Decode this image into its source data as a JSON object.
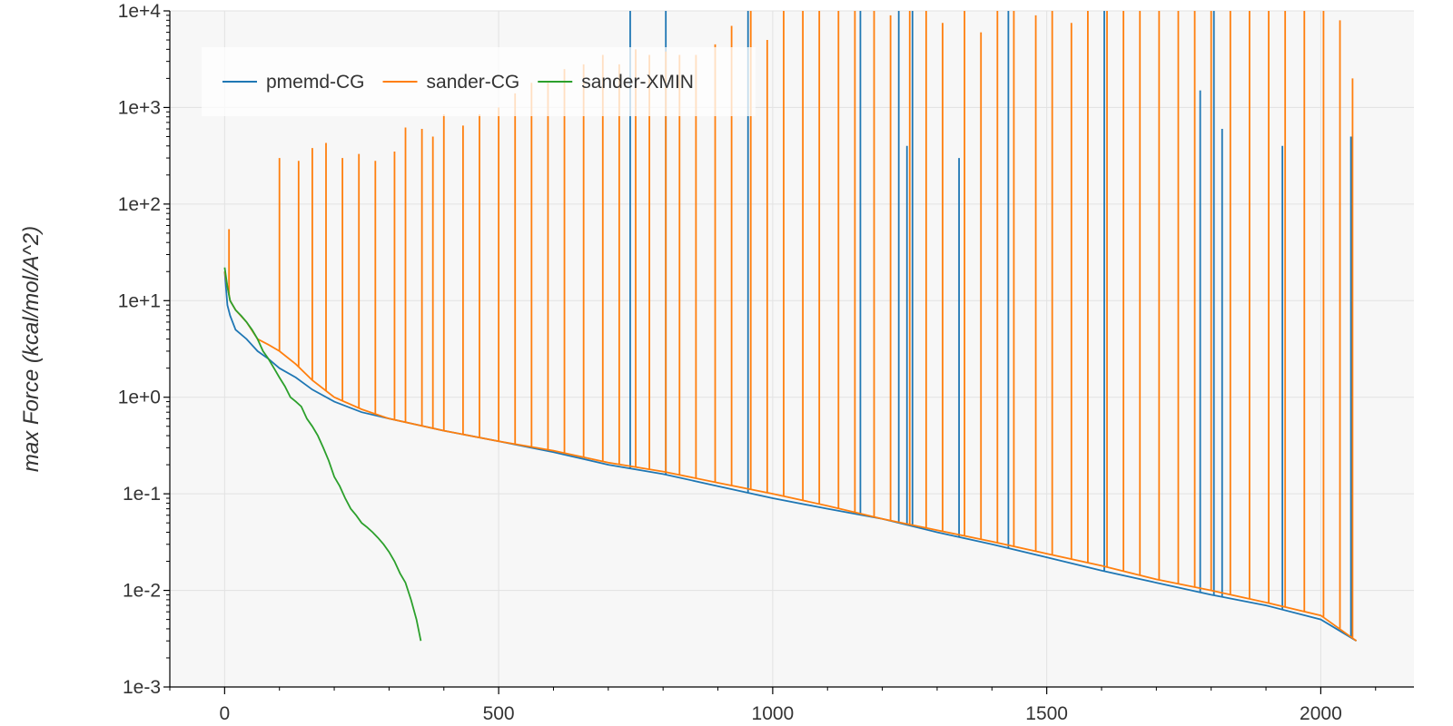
{
  "chart_data": {
    "type": "line",
    "title": "",
    "xlabel": "",
    "ylabel": "max Force (kcal/mol/A^2)",
    "yscale": "log",
    "xlim": [
      -100,
      2170
    ],
    "ylim": [
      0.001,
      10000
    ],
    "x_ticks": [
      0,
      500,
      1000,
      1500,
      2000
    ],
    "x_tick_labels": [
      "0",
      "500",
      "1000",
      "1500",
      "2000"
    ],
    "y_ticks": [
      0.001,
      0.01,
      0.1,
      1,
      10,
      100,
      1000,
      10000
    ],
    "y_tick_labels": [
      "1e-3",
      "1e-2",
      "1e-1",
      "1e+0",
      "1e+1",
      "1e+2",
      "1e+3",
      "1e+4"
    ],
    "grid": true,
    "legend_position": "top-left",
    "plot_background": "#f7f7f7",
    "series": [
      {
        "name": "pmemd-CG",
        "color": "#1f77b4",
        "x": [
          0,
          5,
          10,
          20,
          40,
          60,
          80,
          100,
          130,
          160,
          200,
          250,
          300,
          400,
          500,
          600,
          700,
          800,
          900,
          1000,
          1100,
          1200,
          1300,
          1400,
          1500,
          1600,
          1700,
          1800,
          1900,
          2000,
          2065
        ],
        "y": [
          20,
          9,
          7,
          5,
          4,
          3,
          2.5,
          2,
          1.6,
          1.2,
          0.9,
          0.7,
          0.6,
          0.45,
          0.35,
          0.27,
          0.2,
          0.16,
          0.12,
          0.09,
          0.07,
          0.055,
          0.04,
          0.03,
          0.022,
          0.016,
          0.012,
          0.009,
          0.007,
          0.005,
          0.003
        ],
        "spikes": [
          {
            "x": 740,
            "y": 10000
          },
          {
            "x": 805,
            "y": 10000
          },
          {
            "x": 955,
            "y": 10000
          },
          {
            "x": 1160,
            "y": 10000
          },
          {
            "x": 1230,
            "y": 10000
          },
          {
            "x": 1255,
            "y": 10000
          },
          {
            "x": 1430,
            "y": 10000
          },
          {
            "x": 1605,
            "y": 10000
          },
          {
            "x": 1805,
            "y": 10000
          },
          {
            "x": 1245,
            "y": 400
          },
          {
            "x": 1340,
            "y": 300
          },
          {
            "x": 1780,
            "y": 1500
          },
          {
            "x": 1820,
            "y": 600
          },
          {
            "x": 1930,
            "y": 400
          },
          {
            "x": 2055,
            "y": 500
          }
        ]
      },
      {
        "name": "sander-CG",
        "color": "#ff7f0e",
        "x": [
          0,
          5,
          10,
          20,
          40,
          60,
          80,
          100,
          130,
          160,
          200,
          250,
          300,
          400,
          500,
          600,
          700,
          800,
          900,
          1000,
          1100,
          1200,
          1300,
          1400,
          1500,
          1600,
          1700,
          1800,
          1900,
          2000,
          2065
        ],
        "y": [
          20,
          14,
          10,
          8,
          6,
          4,
          3.5,
          3,
          2.2,
          1.5,
          1.0,
          0.75,
          0.6,
          0.45,
          0.35,
          0.28,
          0.21,
          0.17,
          0.13,
          0.1,
          0.075,
          0.055,
          0.042,
          0.032,
          0.024,
          0.018,
          0.013,
          0.01,
          0.0075,
          0.0055,
          0.003
        ],
        "spikes": [
          {
            "x": 8,
            "y": 55
          },
          {
            "x": 100,
            "y": 300
          },
          {
            "x": 135,
            "y": 280
          },
          {
            "x": 160,
            "y": 380
          },
          {
            "x": 185,
            "y": 430
          },
          {
            "x": 215,
            "y": 300
          },
          {
            "x": 245,
            "y": 330
          },
          {
            "x": 275,
            "y": 280
          },
          {
            "x": 310,
            "y": 350
          },
          {
            "x": 330,
            "y": 620
          },
          {
            "x": 360,
            "y": 600
          },
          {
            "x": 380,
            "y": 500
          },
          {
            "x": 400,
            "y": 850
          },
          {
            "x": 435,
            "y": 650
          },
          {
            "x": 465,
            "y": 850
          },
          {
            "x": 500,
            "y": 1000
          },
          {
            "x": 530,
            "y": 1400
          },
          {
            "x": 560,
            "y": 1800
          },
          {
            "x": 590,
            "y": 1800
          },
          {
            "x": 620,
            "y": 2500
          },
          {
            "x": 655,
            "y": 2800
          },
          {
            "x": 690,
            "y": 3500
          },
          {
            "x": 720,
            "y": 2800
          },
          {
            "x": 750,
            "y": 4000
          },
          {
            "x": 775,
            "y": 3500
          },
          {
            "x": 805,
            "y": 3800
          },
          {
            "x": 830,
            "y": 3500
          },
          {
            "x": 860,
            "y": 3500
          },
          {
            "x": 895,
            "y": 4500
          },
          {
            "x": 925,
            "y": 7000
          },
          {
            "x": 960,
            "y": 10000
          },
          {
            "x": 990,
            "y": 5000
          },
          {
            "x": 1020,
            "y": 10000
          },
          {
            "x": 1055,
            "y": 10000
          },
          {
            "x": 1085,
            "y": 10000
          },
          {
            "x": 1120,
            "y": 10000
          },
          {
            "x": 1150,
            "y": 10000
          },
          {
            "x": 1185,
            "y": 10000
          },
          {
            "x": 1215,
            "y": 9000
          },
          {
            "x": 1250,
            "y": 10000
          },
          {
            "x": 1280,
            "y": 10000
          },
          {
            "x": 1310,
            "y": 7500
          },
          {
            "x": 1350,
            "y": 10000
          },
          {
            "x": 1380,
            "y": 6000
          },
          {
            "x": 1410,
            "y": 10000
          },
          {
            "x": 1440,
            "y": 10000
          },
          {
            "x": 1480,
            "y": 9000
          },
          {
            "x": 1510,
            "y": 10000
          },
          {
            "x": 1545,
            "y": 7500
          },
          {
            "x": 1575,
            "y": 10000
          },
          {
            "x": 1610,
            "y": 10000
          },
          {
            "x": 1640,
            "y": 10000
          },
          {
            "x": 1670,
            "y": 10000
          },
          {
            "x": 1705,
            "y": 10000
          },
          {
            "x": 1740,
            "y": 10000
          },
          {
            "x": 1770,
            "y": 10000
          },
          {
            "x": 1800,
            "y": 10000
          },
          {
            "x": 1835,
            "y": 10000
          },
          {
            "x": 1870,
            "y": 10000
          },
          {
            "x": 1905,
            "y": 10000
          },
          {
            "x": 1935,
            "y": 10000
          },
          {
            "x": 1970,
            "y": 10000
          },
          {
            "x": 2005,
            "y": 10000
          },
          {
            "x": 2035,
            "y": 8000
          },
          {
            "x": 2058,
            "y": 2000
          }
        ]
      },
      {
        "name": "sander-XMIN",
        "color": "#2ca02c",
        "x": [
          0,
          5,
          10,
          20,
          30,
          40,
          50,
          60,
          70,
          80,
          90,
          100,
          110,
          120,
          130,
          140,
          150,
          160,
          170,
          180,
          190,
          200,
          210,
          220,
          230,
          240,
          250,
          260,
          270,
          280,
          290,
          300,
          310,
          320,
          330,
          340,
          350,
          358
        ],
        "y": [
          22,
          14,
          10,
          8,
          7,
          6,
          5,
          4,
          3,
          2.5,
          2,
          1.6,
          1.3,
          1.0,
          0.9,
          0.8,
          0.6,
          0.5,
          0.4,
          0.3,
          0.22,
          0.15,
          0.12,
          0.09,
          0.07,
          0.06,
          0.05,
          0.045,
          0.04,
          0.035,
          0.03,
          0.025,
          0.02,
          0.015,
          0.012,
          0.008,
          0.005,
          0.003
        ]
      }
    ]
  }
}
